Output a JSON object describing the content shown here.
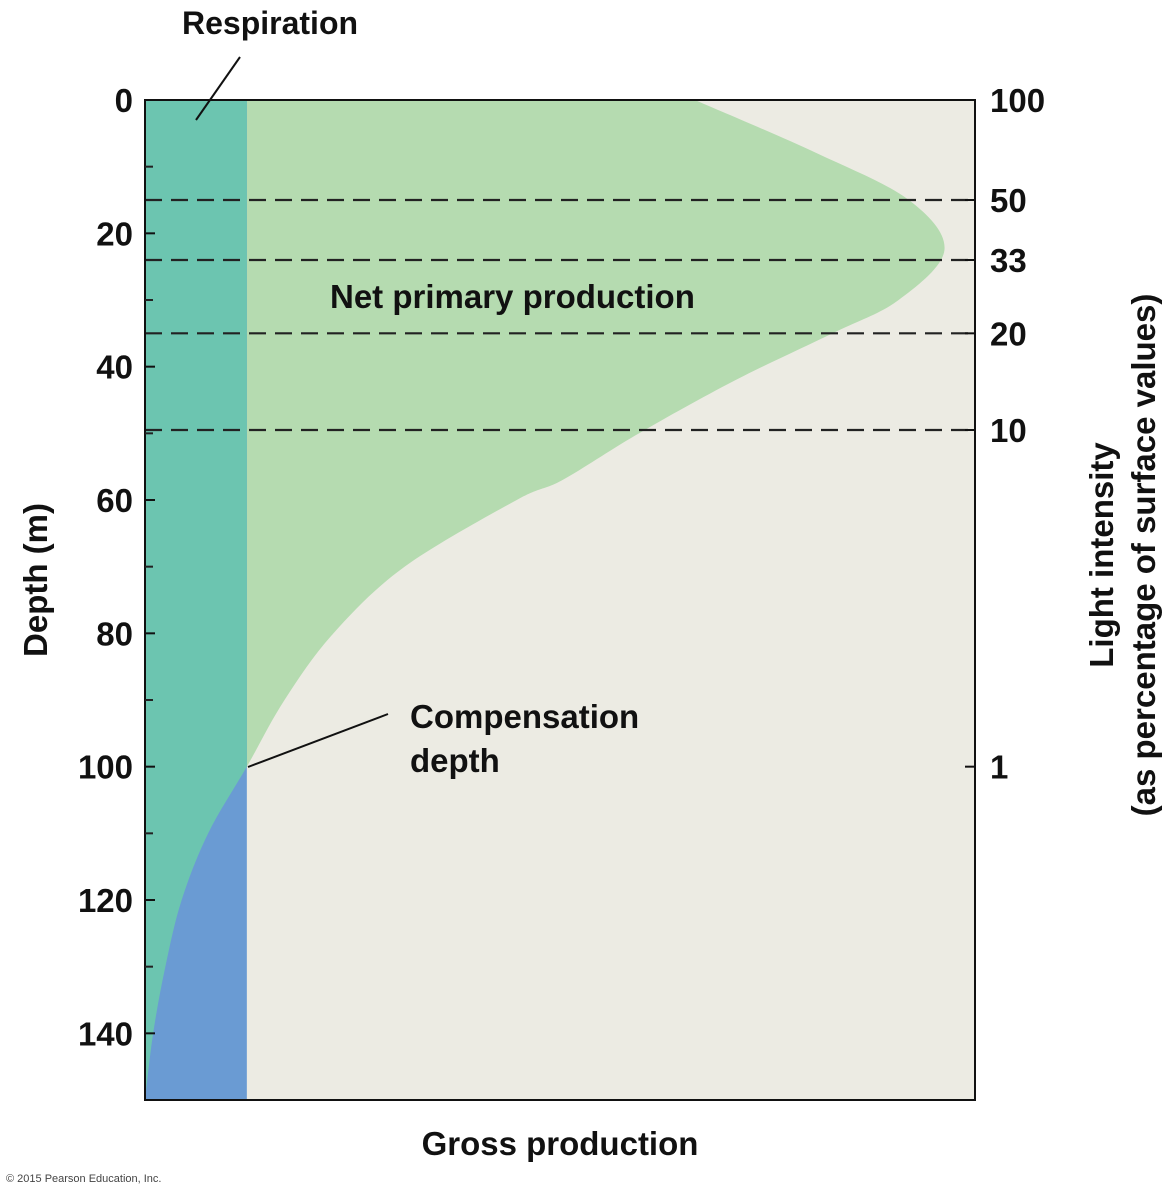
{
  "chart_data": {
    "type": "area",
    "xlabel": "Gross production",
    "ylabel": "Depth (m)",
    "y2label_line1": "Light intensity",
    "y2label_line2": "(as percentage of surface values)",
    "ylim": [
      0,
      150
    ],
    "y_inverted": true,
    "yticks": [
      0,
      20,
      40,
      60,
      80,
      100,
      120,
      140
    ],
    "y_minor_ticks": [
      10,
      30,
      50,
      70,
      90,
      110,
      130
    ],
    "light_levels": [
      {
        "label": "100",
        "depth": 0,
        "dashed": false
      },
      {
        "label": "50",
        "depth": 15,
        "dashed": true
      },
      {
        "label": "33",
        "depth": 24,
        "dashed": true
      },
      {
        "label": "20",
        "depth": 35,
        "dashed": true
      },
      {
        "label": "10",
        "depth": 49.5,
        "dashed": true
      },
      {
        "label": "1",
        "depth": 100,
        "dashed": false
      }
    ],
    "respiration": 1,
    "gross_production": {
      "depth": [
        0,
        8,
        15,
        22.5,
        30,
        35,
        42,
        50,
        57,
        60,
        70,
        80,
        90,
        100,
        110,
        120,
        130,
        140,
        150
      ],
      "value": [
        5.4,
        6.6,
        7.5,
        7.85,
        7.4,
        6.75,
        5.8,
        4.85,
        4.1,
        3.65,
        2.55,
        1.85,
        1.37,
        1.0,
        0.62,
        0.36,
        0.2,
        0.08,
        0.0
      ]
    },
    "xlim": [
      0,
      8.15
    ],
    "annotations": {
      "respiration": "Respiration",
      "net": "Net primary production",
      "compensation_line1": "Compensation",
      "compensation_line2": "depth"
    },
    "colors": {
      "background": "#ecebe3",
      "net_primary_production": "#b5dbb0",
      "respiration": "#6cc5b0",
      "respiration_deficit": "#6a9bd3"
    }
  },
  "copyright": "© 2015 Pearson Education, Inc."
}
